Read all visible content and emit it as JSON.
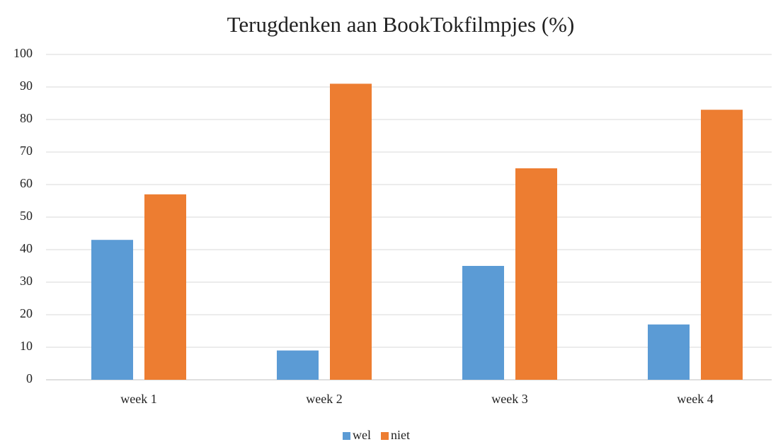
{
  "chart_data": {
    "type": "bar",
    "title": "Terugdenken aan BookTokfilmpjes (%)",
    "categories": [
      "week 1",
      "week 2",
      "week 3",
      "week 4"
    ],
    "series": [
      {
        "name": "wel",
        "color": "#5b9bd5",
        "values": [
          43,
          9,
          35,
          17
        ]
      },
      {
        "name": "niet",
        "color": "#ed7d31",
        "values": [
          57,
          91,
          65,
          83
        ]
      }
    ],
    "ylim": [
      0,
      100
    ],
    "yticks": [
      0,
      10,
      20,
      30,
      40,
      50,
      60,
      70,
      80,
      90,
      100
    ],
    "grid": true,
    "legend": "bottom"
  }
}
